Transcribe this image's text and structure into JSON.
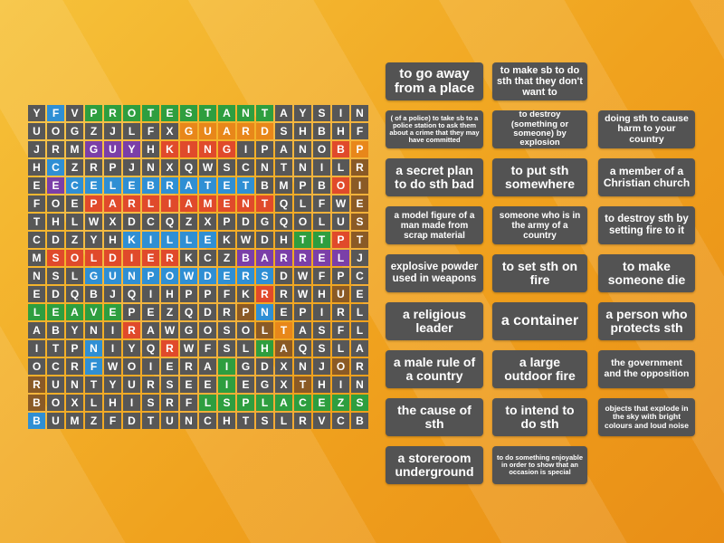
{
  "grid": {
    "rows": [
      "YFVPROTESTANTAYSIN",
      "UOGZJLFXGUARDSHBF",
      "JRMGUYHKINGIPANOBP",
      "HCZRPJNXQWSCNTNILR",
      "EECELEBRATETBMPBOI",
      "FOEPARLIAMENTQLFWE",
      "THLWXDCQZXPDGQOLUS",
      "CDZYHKILLEKWDHTTPT",
      "MSOLDIERKCZBARRELJ",
      "NSLGUNPOWDERSDWFPC",
      "EDQBJQIHPPFKRRWHUE",
      "LEAVEPEZQDRPNEPIRL",
      "ABYNIRAWGOSOLTASFL",
      "ITPNIYQRWFSLHAQSLA",
      "OCRFWOIERAIGDXNJOR",
      "RUNTYURSEEIIEGXTHIN",
      "BOXLHISRFLSPLACEZS",
      "BUMZFDTUNCHTSLRVCB"
    ],
    "cells": [
      [
        "Y",
        "F",
        "V",
        "P",
        "R",
        "O",
        "T",
        "E",
        "S",
        "T",
        "A",
        "N",
        "T",
        "A",
        "Y",
        "S",
        "I",
        "N"
      ],
      [
        "U",
        "O",
        "G",
        "Z",
        "J",
        "L",
        "F",
        "X",
        "G",
        "U",
        "A",
        "R",
        "D",
        "S",
        "H",
        "B",
        "F"
      ],
      [
        "J",
        "R",
        "M",
        "G",
        "U",
        "Y",
        "H",
        "K",
        "I",
        "N",
        "G",
        "I",
        "P",
        "A",
        "N",
        "O",
        "B",
        "P"
      ],
      [
        "H",
        "C",
        "Z",
        "R",
        "P",
        "J",
        "N",
        "X",
        "Q",
        "W",
        "S",
        "C",
        "N",
        "T",
        "N",
        "I",
        "L",
        "R"
      ],
      [
        "E",
        "E",
        "C",
        "E",
        "L",
        "E",
        "B",
        "R",
        "A",
        "T",
        "E",
        "T",
        "B",
        "M",
        "P",
        "B",
        "O",
        "I"
      ],
      [
        "F",
        "O",
        "E",
        "P",
        "A",
        "R",
        "L",
        "I",
        "A",
        "M",
        "E",
        "N",
        "T",
        "Q",
        "L",
        "F",
        "W",
        "E"
      ],
      [
        "T",
        "H",
        "L",
        "W",
        "X",
        "D",
        "C",
        "Q",
        "Z",
        "X",
        "P",
        "D",
        "G",
        "Q",
        "O",
        "L",
        "U",
        "S"
      ],
      [
        "C",
        "D",
        "Z",
        "Y",
        "H",
        "K",
        "I",
        "L",
        "L",
        "E",
        "K",
        "W",
        "D",
        "H",
        "T",
        "T",
        "P",
        "T"
      ],
      [
        "M",
        "S",
        "O",
        "L",
        "D",
        "I",
        "E",
        "R",
        "K",
        "C",
        "Z",
        "B",
        "A",
        "R",
        "R",
        "E",
        "L",
        "J"
      ],
      [
        "N",
        "S",
        "L",
        "G",
        "U",
        "N",
        "P",
        "O",
        "W",
        "D",
        "E",
        "R",
        "S",
        "D",
        "W",
        "F",
        "P",
        "C"
      ],
      [
        "E",
        "D",
        "Q",
        "B",
        "J",
        "Q",
        "I",
        "H",
        "P",
        "P",
        "F",
        "K",
        "R",
        "R",
        "W",
        "H",
        "U",
        "E"
      ],
      [
        "L",
        "E",
        "A",
        "V",
        "E",
        "P",
        "E",
        "Z",
        "Q",
        "D",
        "R",
        "P",
        "N",
        "E",
        "P",
        "I",
        "R",
        "L"
      ],
      [
        "A",
        "B",
        "Y",
        "N",
        "I",
        "R",
        "A",
        "W",
        "G",
        "O",
        "S",
        "O",
        "L",
        "T",
        "A",
        "S",
        "F",
        "L"
      ],
      [
        "I",
        "T",
        "P",
        "N",
        "I",
        "Y",
        "Q",
        "R",
        "W",
        "F",
        "S",
        "L",
        "H",
        "A",
        "Q",
        "S",
        "L",
        "A"
      ],
      [
        "O",
        "C",
        "R",
        "F",
        "W",
        "O",
        "I",
        "E",
        "R",
        "A",
        "I",
        "G",
        "D",
        "X",
        "N",
        "J",
        "O",
        "R"
      ],
      [
        "R",
        "U",
        "N",
        "T",
        "Y",
        "U",
        "R",
        "S",
        "E",
        "E",
        "I",
        "I",
        "E",
        "G",
        "X",
        "T",
        "H",
        "I",
        "N"
      ],
      [
        "B",
        "O",
        "X",
        "L",
        "H",
        "I",
        "S",
        "R",
        "F",
        "L",
        "S",
        "P",
        "L",
        "A",
        "C",
        "E",
        "Z",
        "S"
      ],
      [
        "B",
        "U",
        "M",
        "Z",
        "F",
        "D",
        "T",
        "U",
        "N",
        "C",
        "H",
        "T",
        "S",
        "L",
        "R",
        "V",
        "C",
        "B"
      ]
    ]
  },
  "gridFull": [
    "YFVPROTESTANTAYSIN",
    "UOGZJLFXGUARDSHBF",
    "JRMGUYHKINGIPANOBP"
  ],
  "cards": [
    {
      "id": "c1",
      "text": "to go away from a place"
    },
    {
      "id": "c2",
      "text": "to make sb to do sth that they don't want to"
    },
    {
      "id": "c3",
      "text": "( of a police) to take sb to a police station to ask them about a crime that they may have committed"
    },
    {
      "id": "c4",
      "text": "to destroy (something or someone) by explosion"
    },
    {
      "id": "c5",
      "text": "doing sth to cause harm to your country"
    },
    {
      "id": "c6",
      "text": "a secret plan to do sth bad"
    },
    {
      "id": "c7",
      "text": "to put sth somewhere"
    },
    {
      "id": "c8",
      "text": "a member of a Christian church"
    },
    {
      "id": "c9",
      "text": "a model figure of a man made from scrap material"
    },
    {
      "id": "c10",
      "text": "someone who is in the army of a country"
    },
    {
      "id": "c11",
      "text": "to destroy sth by setting fire to it"
    },
    {
      "id": "c12",
      "text": "explosive powder used in weapons"
    },
    {
      "id": "c13",
      "text": "to set sth on fire"
    },
    {
      "id": "c14",
      "text": "to make someone die"
    },
    {
      "id": "c15",
      "text": "a religious leader"
    },
    {
      "id": "c16",
      "text": "a container"
    },
    {
      "id": "c17",
      "text": "a person who protects sth"
    },
    {
      "id": "c18",
      "text": "a male rule of a country"
    },
    {
      "id": "c19",
      "text": "a large outdoor fire"
    },
    {
      "id": "c20",
      "text": "the government and the opposition"
    },
    {
      "id": "c21",
      "text": "the cause of sth"
    },
    {
      "id": "c22",
      "text": "to intend to do sth"
    },
    {
      "id": "c23",
      "text": "objects that explode in the sky with bright colours and loud noise"
    },
    {
      "id": "c24",
      "text": "a storeroom underground"
    },
    {
      "id": "c25",
      "text": "to do something enjoyable in order to show that an occasion is special"
    }
  ],
  "colors": {
    "cell": "#575757",
    "card": "#535353",
    "blue": "#2f8fd4",
    "green": "#2e9e3f",
    "red": "#e04a2b",
    "purple": "#7b3fa8",
    "orange": "#e8871a",
    "brown": "#8a5a26"
  }
}
